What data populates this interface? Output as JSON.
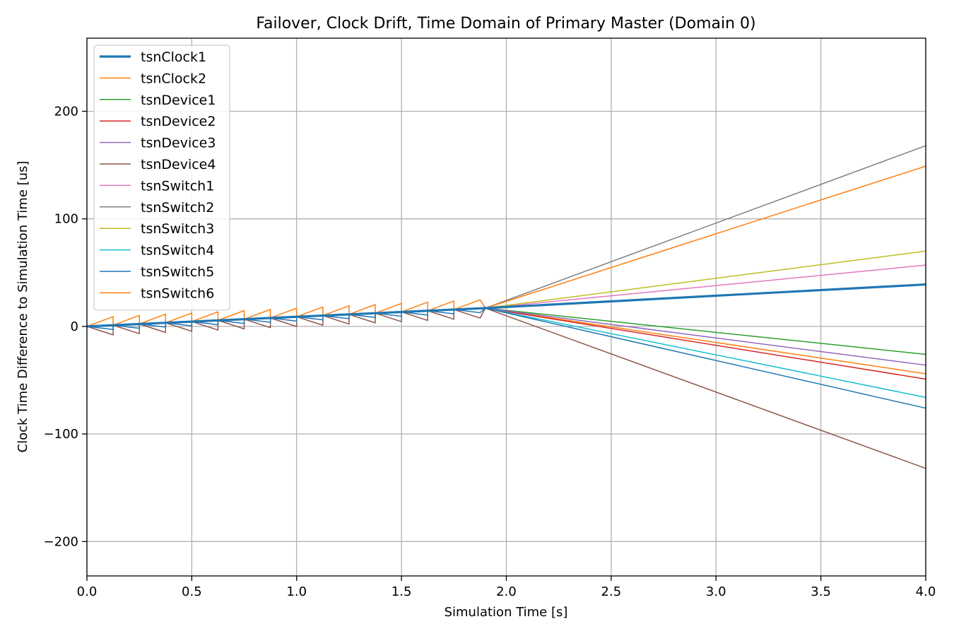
{
  "chart_data": {
    "type": "line",
    "title": "Failover, Clock Drift, Time Domain of Primary Master (Domain 0)",
    "xlabel": "Simulation Time [s]",
    "ylabel": "Clock Time Difference to Simulation Time [us]",
    "xlim": [
      0.0,
      4.0
    ],
    "ylim": [
      -232,
      268
    ],
    "xticks": [
      0.0,
      0.5,
      1.0,
      1.5,
      2.0,
      2.5,
      3.0,
      3.5,
      4.0
    ],
    "xtick_labels": [
      "0.0",
      "0.5",
      "1.0",
      "1.5",
      "2.0",
      "2.5",
      "3.0",
      "3.5",
      "4.0"
    ],
    "yticks": [
      -200,
      -100,
      0,
      100,
      200
    ],
    "ytick_labels": [
      "−200",
      "−100",
      "0",
      "100",
      "200"
    ],
    "grid": true,
    "legend_position": "upper-left",
    "sync_period_s": 0.125,
    "sync_end_s": 1.9,
    "series": [
      {
        "name": "tsnClock1",
        "color": "#1f77b4",
        "width": 3.2,
        "offset_us": [
          0,
          17.0
        ],
        "end_value_us": 39
      },
      {
        "name": "tsnClock2",
        "color": "#ff7f0e",
        "width": 1.5,
        "offset_us": [
          0,
          17.0
        ],
        "end_value_us": -44
      },
      {
        "name": "tsnDevice1",
        "color": "#2ca02c",
        "width": 1.5,
        "offset_us": [
          0,
          17.0
        ],
        "end_value_us": -26
      },
      {
        "name": "tsnDevice2",
        "color": "#d62728",
        "width": 1.5,
        "offset_us": [
          0,
          17.0
        ],
        "end_value_us": -49
      },
      {
        "name": "tsnDevice3",
        "color": "#9467bd",
        "width": 1.5,
        "offset_us": [
          0,
          17.0
        ],
        "end_value_us": -36
      },
      {
        "name": "tsnDevice4",
        "color": "#8c564b",
        "width": 1.5,
        "offset_us": [
          0,
          17.0
        ],
        "end_value_us": -132,
        "sawtooth_drop_us": 9
      },
      {
        "name": "tsnSwitch1",
        "color": "#e377c2",
        "width": 1.5,
        "offset_us": [
          0,
          17.0
        ],
        "end_value_us": 57
      },
      {
        "name": "tsnSwitch2",
        "color": "#7f7f7f",
        "width": 1.5,
        "offset_us": [
          0,
          17.0
        ],
        "end_value_us": 168
      },
      {
        "name": "tsnSwitch3",
        "color": "#bcbd22",
        "width": 1.5,
        "offset_us": [
          0,
          17.0
        ],
        "end_value_us": 70
      },
      {
        "name": "tsnSwitch4",
        "color": "#17becf",
        "width": 1.5,
        "offset_us": [
          0,
          17.0
        ],
        "end_value_us": -66
      },
      {
        "name": "tsnSwitch5",
        "color": "#1f77b4",
        "width": 1.5,
        "offset_us": [
          0,
          17.0
        ],
        "end_value_us": -76,
        "sawtooth_drop_us": 4
      },
      {
        "name": "tsnSwitch6",
        "color": "#ff7f0e",
        "width": 1.5,
        "offset_us": [
          0,
          17.0
        ],
        "end_value_us": 149,
        "sawtooth_rise_us": 8
      }
    ]
  }
}
